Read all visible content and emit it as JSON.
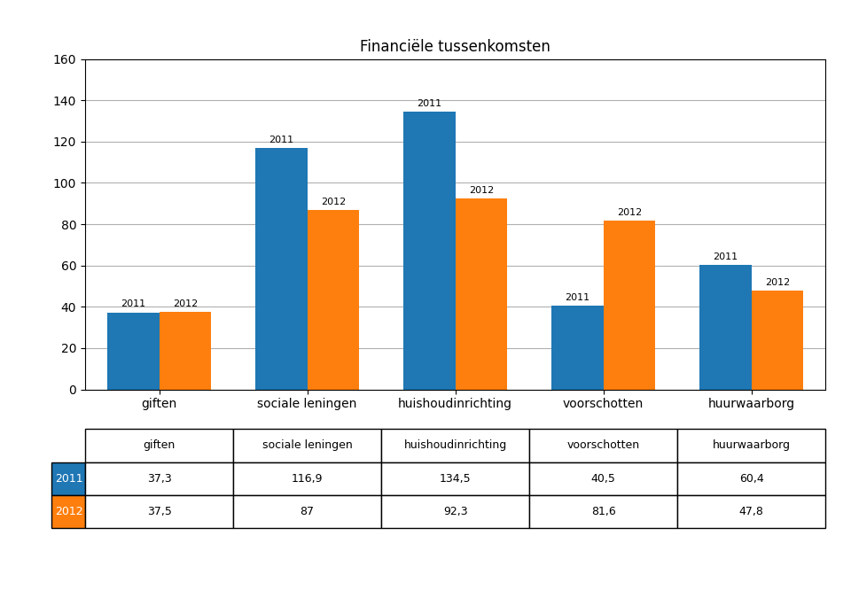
{
  "chart_data": {
    "type": "bar",
    "title": "Financiële tussenkomsten",
    "categories": [
      "giften",
      "sociale leningen",
      "huishoudinrichting",
      "voorschotten",
      "huurwaarborg"
    ],
    "series": [
      {
        "name": "2011",
        "values": [
          37.3,
          116.9,
          134.5,
          40.5,
          60.4
        ],
        "value_labels": [
          "37,3",
          "116,9",
          "134,5",
          "40,5",
          "60,4"
        ]
      },
      {
        "name": "2012",
        "values": [
          37.5,
          87,
          92.3,
          81.6,
          47.8
        ],
        "value_labels": [
          "37,5",
          "87",
          "92,3",
          "81,6",
          "47,8"
        ]
      }
    ],
    "ylim": [
      0,
      160
    ],
    "yticks": [
      0,
      20,
      40,
      60,
      80,
      100,
      120,
      140,
      160
    ],
    "grid": true
  }
}
